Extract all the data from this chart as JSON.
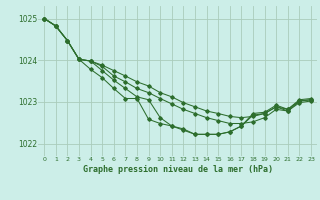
{
  "background_color": "#cceee8",
  "grid_color": "#aaccbb",
  "line_color": "#2d6e2d",
  "marker_color": "#2d6e2d",
  "title": "Graphe pression niveau de la mer (hPa)",
  "xlim": [
    -0.5,
    23.5
  ],
  "ylim": [
    1021.7,
    1025.3
  ],
  "yticks": [
    1022,
    1023,
    1024,
    1025
  ],
  "xticks": [
    0,
    1,
    2,
    3,
    4,
    5,
    6,
    7,
    8,
    9,
    10,
    11,
    12,
    13,
    14,
    15,
    16,
    17,
    18,
    19,
    20,
    21,
    22,
    23
  ],
  "xtick_labels": [
    "0",
    "1",
    "2",
    "3",
    "4",
    "5",
    "6",
    "7",
    "8",
    "9",
    "10",
    "11",
    "12",
    "13",
    "14",
    "15",
    "16",
    "17",
    "18",
    "19",
    "20",
    "21",
    "22",
    "23"
  ],
  "series": [
    [
      1025.0,
      1024.82,
      1024.47,
      1024.02,
      1023.98,
      1023.75,
      1023.52,
      1023.32,
      1023.12,
      1023.05,
      1022.62,
      1022.42,
      1022.32,
      1022.22,
      1022.22,
      1022.22,
      1022.28,
      1022.42,
      1022.72,
      1022.75,
      1022.92,
      1022.82,
      1023.02,
      1023.05
    ],
    [
      1025.0,
      1024.82,
      1024.47,
      1024.02,
      1023.78,
      1023.58,
      1023.32,
      1023.08,
      1023.08,
      1022.58,
      1022.48,
      1022.42,
      1022.35,
      1022.22,
      1022.22,
      1022.22,
      1022.28,
      1022.42,
      1022.68,
      1022.72,
      1022.88,
      1022.78,
      1022.98,
      1023.02
    ],
    [
      1025.0,
      1024.82,
      1024.47,
      1024.02,
      1023.98,
      1023.85,
      1023.62,
      1023.48,
      1023.32,
      1023.22,
      1023.08,
      1022.95,
      1022.82,
      1022.72,
      1022.62,
      1022.55,
      1022.48,
      1022.48,
      1022.52,
      1022.62,
      1022.82,
      1022.78,
      1023.02,
      1023.05
    ],
    [
      1025.0,
      1024.82,
      1024.47,
      1024.02,
      1023.98,
      1023.88,
      1023.75,
      1023.62,
      1023.48,
      1023.38,
      1023.22,
      1023.12,
      1022.98,
      1022.88,
      1022.78,
      1022.72,
      1022.65,
      1022.62,
      1022.65,
      1022.72,
      1022.88,
      1022.82,
      1023.05,
      1023.08
    ]
  ]
}
